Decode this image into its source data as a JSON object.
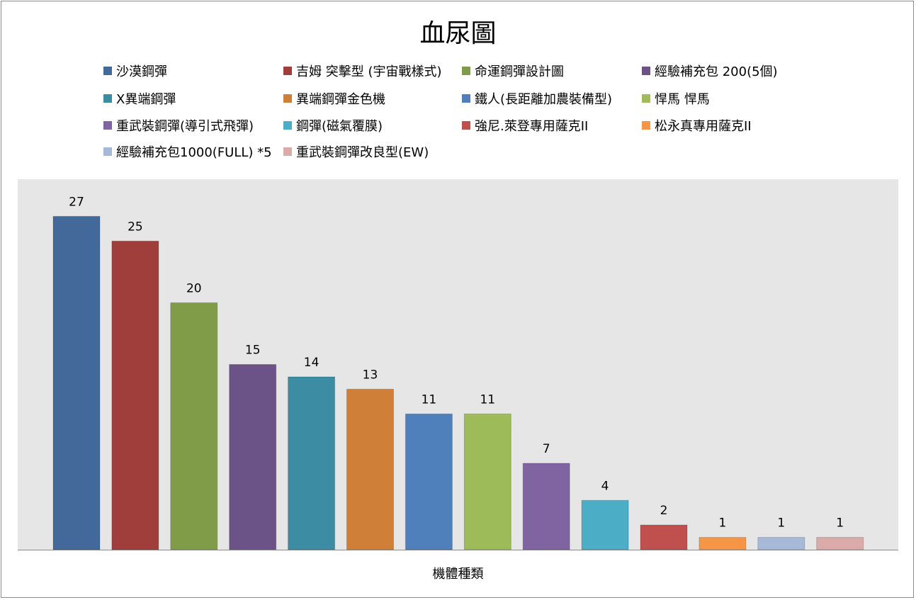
{
  "chart_data": {
    "type": "bar",
    "title": "血尿圖",
    "xlabel": "機體種類",
    "ylabel": "",
    "ylim": [
      0,
      30
    ],
    "grid": false,
    "legend_position": "top",
    "categories": [
      "沙漠鋼彈",
      "吉姆 突擊型 (宇宙戰樣式)",
      "命運鋼彈設計圖",
      "經驗補充包 200(5個)",
      "X異端鋼彈",
      "異端鋼彈金色機",
      "鐵人(長距離加農裝備型)",
      "悍馬 悍馬",
      "重武裝鋼彈(導引式飛彈)",
      "鋼彈(磁氣覆膜)",
      "強尼.萊登專用薩克II",
      "松永真專用薩克II",
      "經驗補充包1000(FULL) *5",
      "重武裝鋼彈改良型(EW)"
    ],
    "values": [
      27,
      25,
      20,
      15,
      14,
      13,
      11,
      11,
      7,
      4,
      2,
      1,
      1,
      1
    ],
    "colors": [
      "#43699a",
      "#a03e3c",
      "#809c48",
      "#6b5287",
      "#3c8da3",
      "#d07f38",
      "#4f80bb",
      "#9dbb58",
      "#8064a2",
      "#4badc6",
      "#c0504d",
      "#f79546",
      "#a7b9d8",
      "#dbabaa"
    ],
    "plot_background": "#e6e6e6"
  }
}
